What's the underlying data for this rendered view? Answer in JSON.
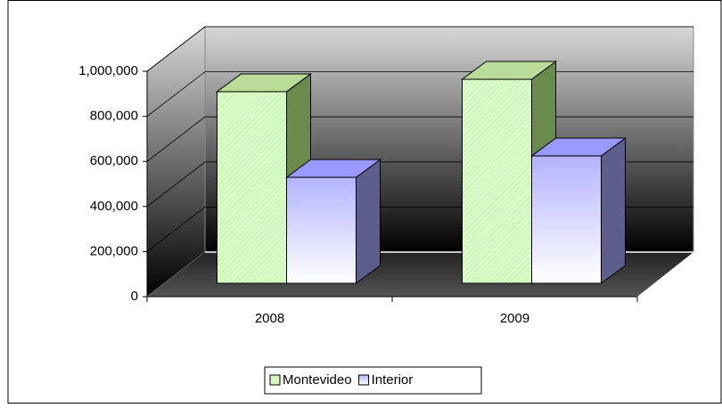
{
  "chart_data": {
    "type": "bar3d",
    "categories": [
      "2008",
      "2009"
    ],
    "series": [
      {
        "name": "Montevideo",
        "color": "#ccffaa",
        "values": [
          850000,
          905000
        ]
      },
      {
        "name": "Interior",
        "color": "#b3b3ff",
        "values": [
          470000,
          565000
        ]
      }
    ],
    "ylim": [
      0,
      1000000
    ],
    "yticks": [
      0,
      {
        "value": 200000,
        "label": "200,000"
      },
      {
        "value": 400000,
        "label": "400,000"
      },
      {
        "value": 600000,
        "label": "600,000"
      },
      {
        "value": 800000,
        "label": "800,000"
      },
      {
        "value": 1000000,
        "label": "1,000,000"
      }
    ],
    "grid": true,
    "legend": "bottom"
  }
}
